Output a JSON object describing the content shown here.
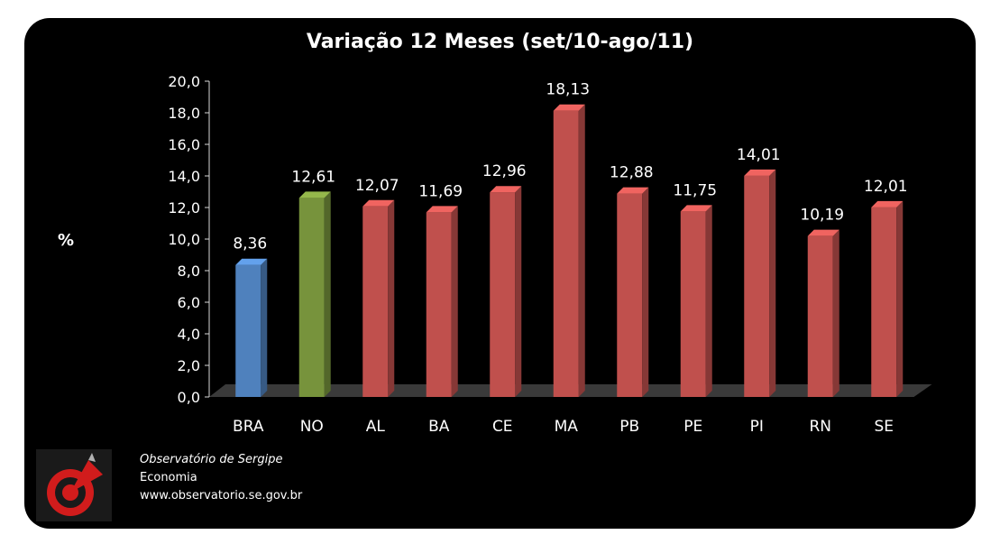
{
  "chart_data": {
    "type": "bar",
    "title": "Variação 12 Meses (set/10-ago/11)",
    "ylabel": "%",
    "xlabel": "",
    "categories": [
      "BRA",
      "NO",
      "AL",
      "BA",
      "CE",
      "MA",
      "PB",
      "PE",
      "PI",
      "RN",
      "SE"
    ],
    "values": [
      8.36,
      12.61,
      12.07,
      11.69,
      12.96,
      18.13,
      12.88,
      11.75,
      14.01,
      10.19,
      12.01
    ],
    "value_labels": [
      "8,36",
      "12,61",
      "12,07",
      "11,69",
      "12,96",
      "18,13",
      "12,88",
      "11,75",
      "14,01",
      "10,19",
      "12,01"
    ],
    "yticks": [
      "0,0",
      "2,0",
      "4,0",
      "6,0",
      "8,0",
      "10,0",
      "12,0",
      "14,0",
      "16,0",
      "18,0",
      "20,0"
    ],
    "ylim": [
      0,
      20
    ],
    "grid": false,
    "legend": "none",
    "bar_colors": [
      "#4f81bd",
      "#77933c",
      "#c0504d",
      "#c0504d",
      "#c0504d",
      "#c0504d",
      "#c0504d",
      "#c0504d",
      "#c0504d",
      "#c0504d",
      "#c0504d"
    ]
  },
  "footer": {
    "org": "Observatório de Sergipe",
    "section": "Economia",
    "url": "www.observatorio.se.gov.br"
  },
  "logo_icon": "observatorio-target-logo-icon"
}
